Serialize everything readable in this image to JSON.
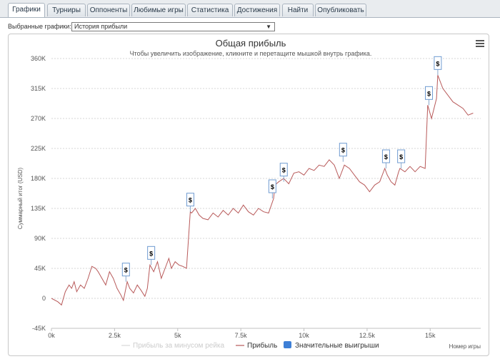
{
  "tabs": [
    {
      "label": "Графики",
      "active": true
    },
    {
      "label": "Турниры",
      "active": false
    },
    {
      "label": "Оппоненты",
      "active": false
    },
    {
      "label": "Любимые игры",
      "active": false
    },
    {
      "label": "Статистика",
      "active": false
    },
    {
      "label": "Достижения",
      "active": false
    },
    {
      "label": "Найти",
      "active": false
    },
    {
      "label": "Опубликовать",
      "active": false
    }
  ],
  "selector": {
    "label": "Выбранные графики:",
    "value": "История прибыли"
  },
  "chart_data": {
    "type": "line",
    "title": "Общая прибыль",
    "subtitle": "Чтобы увеличить изображение, кликните и перетащите мышкой внутрь графика.",
    "ylabel": "Суммарный итог (USD)",
    "xlabel": "Номер игры",
    "xlim": [
      0,
      17000
    ],
    "ylim": [
      -45000,
      360000
    ],
    "x_ticks": [
      0,
      2500,
      5000,
      7500,
      10000,
      12500,
      15000
    ],
    "x_tick_labels": [
      "0k",
      "2.5k",
      "5k",
      "7.5k",
      "10k",
      "12.5k",
      "15k"
    ],
    "y_ticks": [
      -45000,
      0,
      45000,
      90000,
      135000,
      180000,
      225000,
      270000,
      315000,
      360000
    ],
    "y_tick_labels": [
      "-45K",
      "0",
      "45K",
      "90K",
      "135K",
      "180K",
      "225K",
      "270K",
      "315K",
      "360K"
    ],
    "grid": true,
    "legend_position": "bottom",
    "series": [
      {
        "name": "Прибыль за минусом рейка",
        "color": "#d8d8d8",
        "values": []
      },
      {
        "name": "Прибыль",
        "color": "#b85a5a",
        "x": [
          0,
          250,
          400,
          550,
          700,
          800,
          900,
          1000,
          1150,
          1300,
          1450,
          1600,
          1750,
          1850,
          2000,
          2150,
          2300,
          2450,
          2600,
          2750,
          2850,
          3000,
          3100,
          3250,
          3400,
          3550,
          3700,
          3800,
          3900,
          4050,
          4200,
          4350,
          4500,
          4650,
          4750,
          4900,
          5050,
          5200,
          5350,
          5500,
          5550,
          5700,
          5850,
          6000,
          6200,
          6400,
          6600,
          6800,
          7000,
          7200,
          7400,
          7600,
          7800,
          8000,
          8200,
          8400,
          8600,
          8800,
          8850,
          9000,
          9200,
          9400,
          9600,
          9800,
          10000,
          10200,
          10400,
          10600,
          10800,
          11000,
          11200,
          11400,
          11600,
          11800,
          12000,
          12200,
          12400,
          12600,
          12800,
          13000,
          13200,
          13300,
          13450,
          13600,
          13750,
          13800,
          14000,
          14200,
          14400,
          14600,
          14800,
          14900,
          15050,
          15250,
          15300,
          15500,
          15700,
          15900,
          16100,
          16300,
          16500,
          16700
        ],
        "values": [
          0,
          -5000,
          -10000,
          10000,
          20000,
          15000,
          25000,
          10000,
          20000,
          15000,
          30000,
          48000,
          45000,
          40000,
          30000,
          20000,
          40000,
          30000,
          15000,
          5000,
          -3000,
          25000,
          15000,
          8000,
          20000,
          12000,
          3000,
          15000,
          50000,
          40000,
          55000,
          30000,
          45000,
          60000,
          45000,
          55000,
          50000,
          48000,
          45000,
          130000,
          128000,
          135000,
          125000,
          120000,
          118000,
          128000,
          122000,
          132000,
          125000,
          135000,
          128000,
          140000,
          130000,
          125000,
          135000,
          130000,
          128000,
          150000,
          170000,
          175000,
          180000,
          172000,
          188000,
          190000,
          185000,
          195000,
          192000,
          200000,
          198000,
          208000,
          200000,
          180000,
          200000,
          195000,
          185000,
          175000,
          170000,
          160000,
          170000,
          175000,
          195000,
          185000,
          175000,
          170000,
          190000,
          195000,
          190000,
          198000,
          190000,
          198000,
          195000,
          290000,
          270000,
          300000,
          335000,
          315000,
          305000,
          295000,
          290000,
          285000,
          275000,
          278000
        ]
      },
      {
        "name": "Значительные выигрыши",
        "color": "#3d7fd6",
        "type": "flags",
        "flag": "$",
        "x": [
          2950,
          3950,
          5500,
          8750,
          9200,
          11550,
          13250,
          13850,
          14950,
          15300
        ],
        "values": [
          25000,
          50000,
          130000,
          150000,
          175000,
          205000,
          195000,
          195000,
          290000,
          335000
        ]
      }
    ]
  }
}
